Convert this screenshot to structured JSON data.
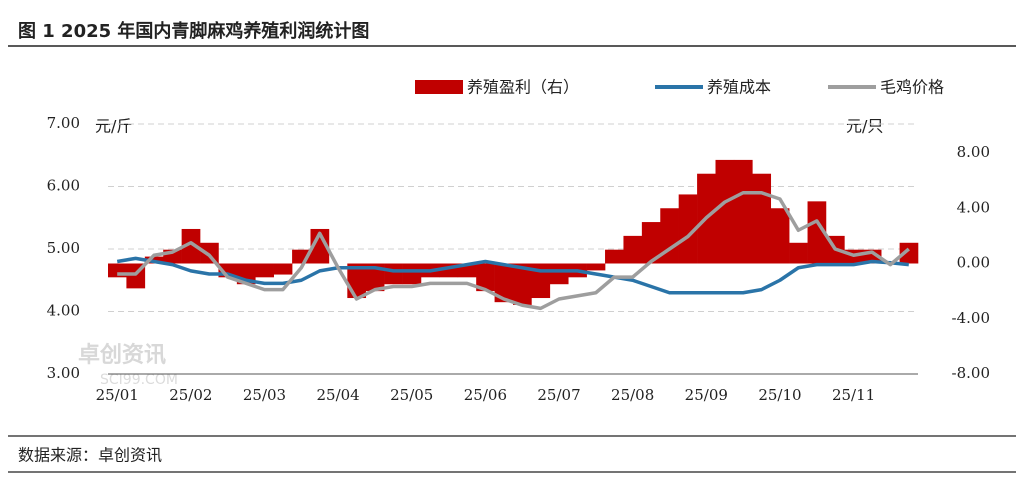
{
  "chart_data": {
    "type": "bar-line",
    "title": "图 1 2025 年国内青脚麻鸡养殖利润统计图",
    "source": "数据来源：卓创资讯",
    "ylabel": "元/斤",
    "y2label": "元/只",
    "watermark": [
      "卓创资讯",
      "SCI99.COM"
    ],
    "categories": [
      "25/01",
      null,
      null,
      null,
      "25/02",
      null,
      null,
      null,
      "25/03",
      null,
      null,
      null,
      "25/04",
      null,
      null,
      null,
      "25/05",
      null,
      null,
      null,
      "25/06",
      null,
      null,
      null,
      "25/07",
      null,
      null,
      null,
      "25/08",
      null,
      null,
      null,
      "25/09",
      null,
      null,
      null,
      "25/10",
      null,
      null,
      null,
      "25/11",
      null,
      null,
      null
    ],
    "series": [
      {
        "name": "养殖盈利（右）",
        "color": "#c00000",
        "axis": "y2",
        "kind": "bar",
        "values": [
          -1,
          -1.8,
          0.5,
          1,
          2.5,
          1.5,
          -1,
          -1.5,
          -1,
          -0.8,
          1,
          2.5,
          0,
          -2.5,
          -2,
          -1.5,
          -1.5,
          -1,
          -1,
          -1,
          -2,
          -2.8,
          -3,
          -2.5,
          -1.5,
          -1,
          -0.5,
          1,
          2,
          3,
          4,
          5,
          6.5,
          7.5,
          7.5,
          6.5,
          4,
          1.5,
          4.5,
          2,
          1,
          1,
          0,
          1.5
        ]
      },
      {
        "name": "养殖成本",
        "color": "#2a74a8",
        "kind": "line",
        "values": [
          4.8,
          4.85,
          4.8,
          4.75,
          4.65,
          4.6,
          4.6,
          4.5,
          4.45,
          4.45,
          4.5,
          4.65,
          4.7,
          4.7,
          4.7,
          4.65,
          4.65,
          4.65,
          4.7,
          4.75,
          4.8,
          4.75,
          4.7,
          4.65,
          4.65,
          4.65,
          4.6,
          4.55,
          4.5,
          4.4,
          4.3,
          4.3,
          4.3,
          4.3,
          4.3,
          4.35,
          4.5,
          4.7,
          4.75,
          4.75,
          4.75,
          4.8,
          4.78,
          4.75
        ]
      },
      {
        "name": "毛鸡价格",
        "color": "#9e9e9e",
        "kind": "line",
        "values": [
          4.6,
          4.6,
          4.9,
          4.95,
          5.1,
          4.9,
          4.55,
          4.45,
          4.35,
          4.35,
          4.7,
          5.25,
          4.7,
          4.2,
          4.35,
          4.4,
          4.4,
          4.45,
          4.45,
          4.45,
          4.35,
          4.2,
          4.1,
          4.05,
          4.2,
          4.25,
          4.3,
          4.55,
          4.55,
          4.8,
          5.0,
          5.2,
          5.5,
          5.75,
          5.9,
          5.9,
          5.8,
          5.3,
          5.45,
          5.0,
          4.9,
          4.95,
          4.75,
          5.0
        ]
      }
    ],
    "ylim": [
      3,
      7
    ],
    "yticks": [
      {
        "value": 3,
        "label": "3.00"
      },
      {
        "value": 4,
        "label": "4.00"
      },
      {
        "value": 5,
        "label": "5.00"
      },
      {
        "value": 6,
        "label": "6.00"
      },
      {
        "value": 7,
        "label": "7.00"
      }
    ],
    "y2lim": [
      -8,
      8
    ],
    "y2ticks": [
      {
        "value": -8,
        "label": "-8.00"
      },
      {
        "value": -4,
        "label": "-4.00"
      },
      {
        "value": 0,
        "label": "0.00"
      },
      {
        "value": 4,
        "label": "4.00"
      },
      {
        "value": 8,
        "label": "8.00"
      }
    ],
    "grid": true
  }
}
